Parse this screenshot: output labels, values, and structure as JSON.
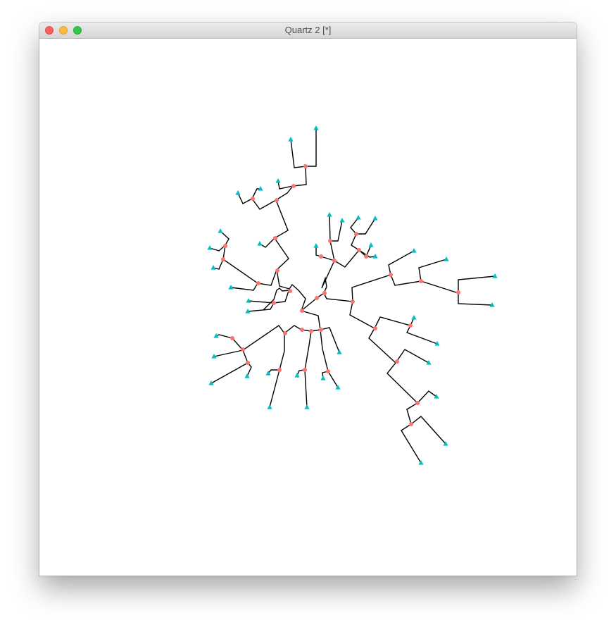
{
  "window": {
    "title": "Quartz 2 [*]"
  },
  "colors": {
    "edge": "#000000",
    "node": "#f8766d",
    "tip": "#00bfc4"
  },
  "icons": [
    "close-button",
    "minimize-button",
    "zoom-button"
  ]
}
